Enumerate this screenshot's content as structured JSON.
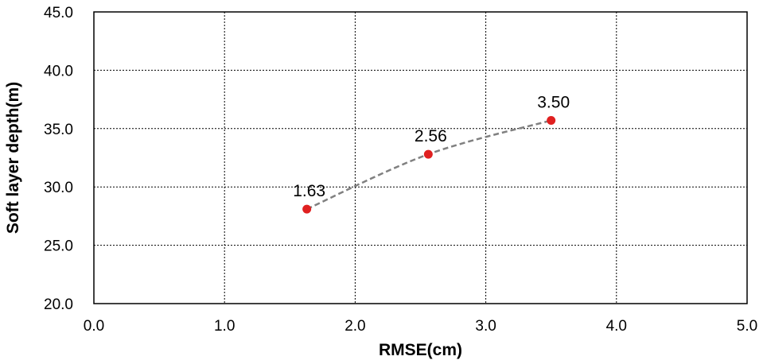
{
  "chart_data": {
    "type": "scatter",
    "title": "",
    "xlabel": "RMSE(cm)",
    "ylabel": "Soft layer depth(m)",
    "xlim": [
      0.0,
      5.0
    ],
    "ylim": [
      20.0,
      45.0
    ],
    "x_ticks": [
      "0.0",
      "1.0",
      "2.0",
      "3.0",
      "4.0",
      "5.0"
    ],
    "y_ticks": [
      "20.0",
      "25.0",
      "30.0",
      "35.0",
      "40.0",
      "45.0"
    ],
    "grid": true,
    "legend": "none",
    "series": [
      {
        "marker_color": "#e02020",
        "line_color": "#808080",
        "line_style": "dashed trend curve",
        "points": [
          {
            "x": 1.63,
            "y": 28.1,
            "label": "1.63"
          },
          {
            "x": 2.56,
            "y": 32.8,
            "label": "2.56"
          },
          {
            "x": 3.5,
            "y": 35.7,
            "label": "3.50"
          }
        ]
      }
    ]
  }
}
